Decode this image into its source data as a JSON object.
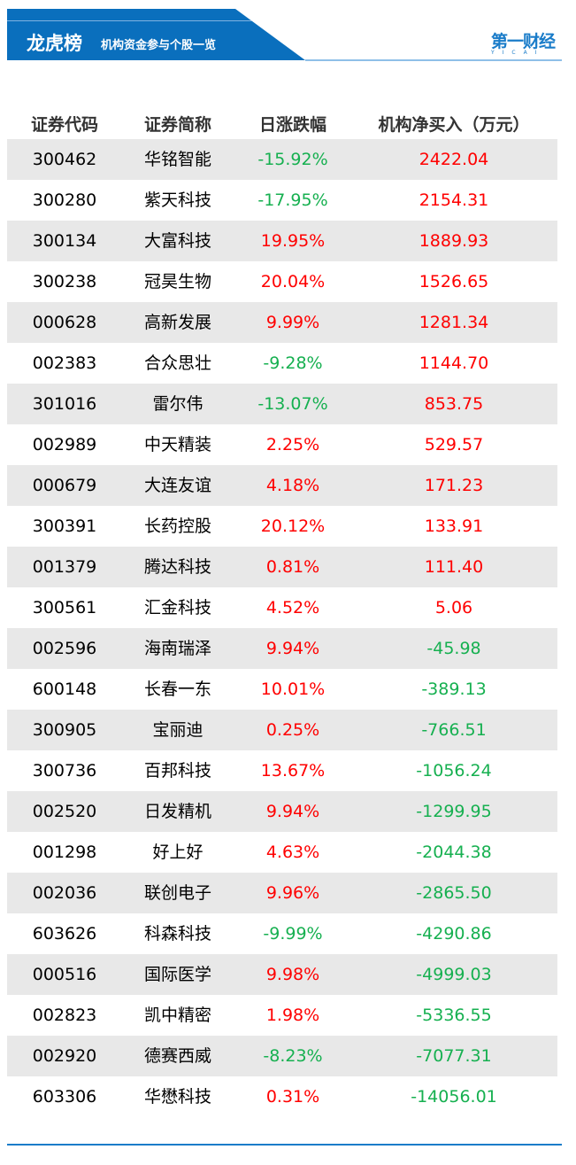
{
  "header": {
    "title": "龙虎榜",
    "subtitle": "机构资金参与个股一览",
    "logo": "第一财经",
    "logo_sub": "YICAI"
  },
  "colors": {
    "up": "#ff0000",
    "down": "#16b050",
    "brand": "#0a6fbd"
  },
  "table": {
    "columns": [
      "证券代码",
      "证券简称",
      "日涨跌幅",
      "机构净买入（万元）"
    ],
    "rows": [
      [
        "300462",
        "华铭智能",
        "-15.92%",
        "2422.04"
      ],
      [
        "300280",
        "紫天科技",
        "-17.95%",
        "2154.31"
      ],
      [
        "300134",
        "大富科技",
        "19.95%",
        "1889.93"
      ],
      [
        "300238",
        "冠昊生物",
        "20.04%",
        "1526.65"
      ],
      [
        "000628",
        "高新发展",
        "9.99%",
        "1281.34"
      ],
      [
        "002383",
        "合众思壮",
        "-9.28%",
        "1144.70"
      ],
      [
        "301016",
        "雷尔伟",
        "-13.07%",
        "853.75"
      ],
      [
        "002989",
        "中天精装",
        "2.25%",
        "529.57"
      ],
      [
        "000679",
        "大连友谊",
        "4.18%",
        "171.23"
      ],
      [
        "300391",
        "长药控股",
        "20.12%",
        "133.91"
      ],
      [
        "001379",
        "腾达科技",
        "0.81%",
        "111.40"
      ],
      [
        "300561",
        "汇金科技",
        "4.52%",
        "5.06"
      ],
      [
        "002596",
        "海南瑞泽",
        "9.94%",
        "-45.98"
      ],
      [
        "600148",
        "长春一东",
        "10.01%",
        "-389.13"
      ],
      [
        "300905",
        "宝丽迪",
        "0.25%",
        "-766.51"
      ],
      [
        "300736",
        "百邦科技",
        "13.67%",
        "-1056.24"
      ],
      [
        "002520",
        "日发精机",
        "9.94%",
        "-1299.95"
      ],
      [
        "001298",
        "好上好",
        "4.63%",
        "-2044.38"
      ],
      [
        "002036",
        "联创电子",
        "9.96%",
        "-2865.50"
      ],
      [
        "603626",
        "科森科技",
        "-9.99%",
        "-4290.86"
      ],
      [
        "000516",
        "国际医学",
        "9.98%",
        "-4999.03"
      ],
      [
        "002823",
        "凯中精密",
        "1.98%",
        "-5336.55"
      ],
      [
        "002920",
        "德赛西威",
        "-8.23%",
        "-7077.31"
      ],
      [
        "603306",
        "华懋科技",
        "0.31%",
        "-14056.01"
      ]
    ]
  }
}
